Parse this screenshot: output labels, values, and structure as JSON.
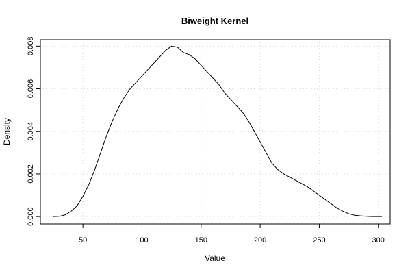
{
  "chart_data": {
    "type": "line",
    "title": "Biweight Kernel",
    "xlabel": "Value",
    "ylabel": "Density",
    "xlim": [
      14,
      310
    ],
    "ylim": [
      -0.00035,
      0.0083
    ],
    "xticks": [
      50,
      100,
      150,
      200,
      250,
      300
    ],
    "yticks": [
      0,
      0.002,
      0.004,
      0.006,
      0.008
    ],
    "xtick_labels": [
      "50",
      "100",
      "150",
      "200",
      "250",
      "300"
    ],
    "ytick_labels": [
      "0.000",
      "0.002",
      "0.004",
      "0.006",
      "0.008"
    ],
    "grid": true,
    "series": [
      {
        "x": [
          25,
          30,
          35,
          40,
          45,
          50,
          55,
          60,
          65,
          70,
          75,
          80,
          85,
          90,
          95,
          100,
          105,
          110,
          115,
          120,
          125,
          130,
          135,
          140,
          145,
          150,
          155,
          160,
          165,
          170,
          175,
          180,
          185,
          190,
          195,
          200,
          205,
          210,
          215,
          220,
          225,
          230,
          235,
          240,
          245,
          250,
          255,
          260,
          265,
          270,
          275,
          280,
          285,
          290,
          295,
          300,
          303
        ],
        "y": [
          0.0,
          1e-05,
          8e-05,
          0.00025,
          0.0005,
          0.00095,
          0.0015,
          0.0022,
          0.003,
          0.0038,
          0.0045,
          0.0051,
          0.0056,
          0.006,
          0.0063,
          0.0066,
          0.0069,
          0.0072,
          0.0075,
          0.0078,
          0.008,
          0.00795,
          0.0077,
          0.0076,
          0.0074,
          0.0071,
          0.0068,
          0.0065,
          0.0062,
          0.0058,
          0.0055,
          0.0052,
          0.0049,
          0.0045,
          0.004,
          0.0035,
          0.003,
          0.0025,
          0.0022,
          0.002,
          0.00185,
          0.0017,
          0.00155,
          0.0014,
          0.0012,
          0.001,
          0.0008,
          0.0006,
          0.0004,
          0.00025,
          0.00013,
          6e-05,
          3e-05,
          1e-05,
          0.0,
          0.0,
          0.0
        ]
      }
    ]
  }
}
